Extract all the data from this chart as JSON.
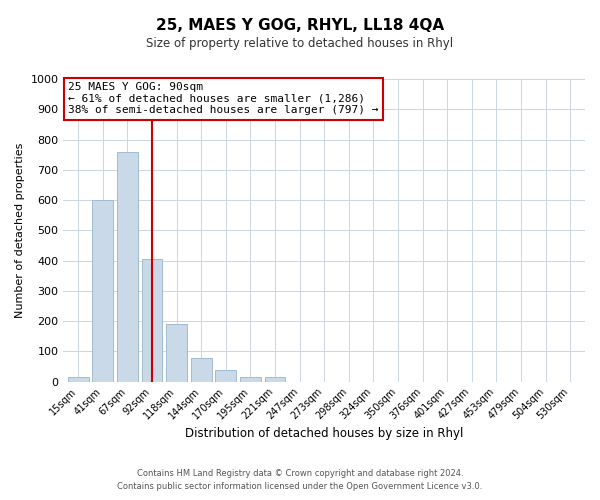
{
  "title": "25, MAES Y GOG, RHYL, LL18 4QA",
  "subtitle": "Size of property relative to detached houses in Rhyl",
  "xlabel": "Distribution of detached houses by size in Rhyl",
  "ylabel": "Number of detached properties",
  "bar_labels": [
    "15sqm",
    "41sqm",
    "67sqm",
    "92sqm",
    "118sqm",
    "144sqm",
    "170sqm",
    "195sqm",
    "221sqm",
    "247sqm",
    "273sqm",
    "298sqm",
    "324sqm",
    "350sqm",
    "376sqm",
    "401sqm",
    "427sqm",
    "453sqm",
    "479sqm",
    "504sqm",
    "530sqm"
  ],
  "bar_values": [
    15,
    600,
    760,
    405,
    190,
    78,
    40,
    17,
    14,
    0,
    0,
    0,
    0,
    0,
    0,
    0,
    0,
    0,
    0,
    0,
    0
  ],
  "bar_color": "#c9d9e8",
  "bar_edgecolor": "#a0bcd0",
  "vline_x_index": 3,
  "vline_color": "#cc0000",
  "ylim": [
    0,
    1000
  ],
  "yticks": [
    0,
    100,
    200,
    300,
    400,
    500,
    600,
    700,
    800,
    900,
    1000
  ],
  "annotation_title": "25 MAES Y GOG: 90sqm",
  "annotation_line1": "← 61% of detached houses are smaller (1,286)",
  "annotation_line2": "38% of semi-detached houses are larger (797) →",
  "annotation_box_color": "#ffffff",
  "annotation_box_edgecolor": "#cc0000",
  "footer_line1": "Contains HM Land Registry data © Crown copyright and database right 2024.",
  "footer_line2": "Contains public sector information licensed under the Open Government Licence v3.0.",
  "background_color": "#ffffff",
  "grid_color": "#ccd6e0"
}
